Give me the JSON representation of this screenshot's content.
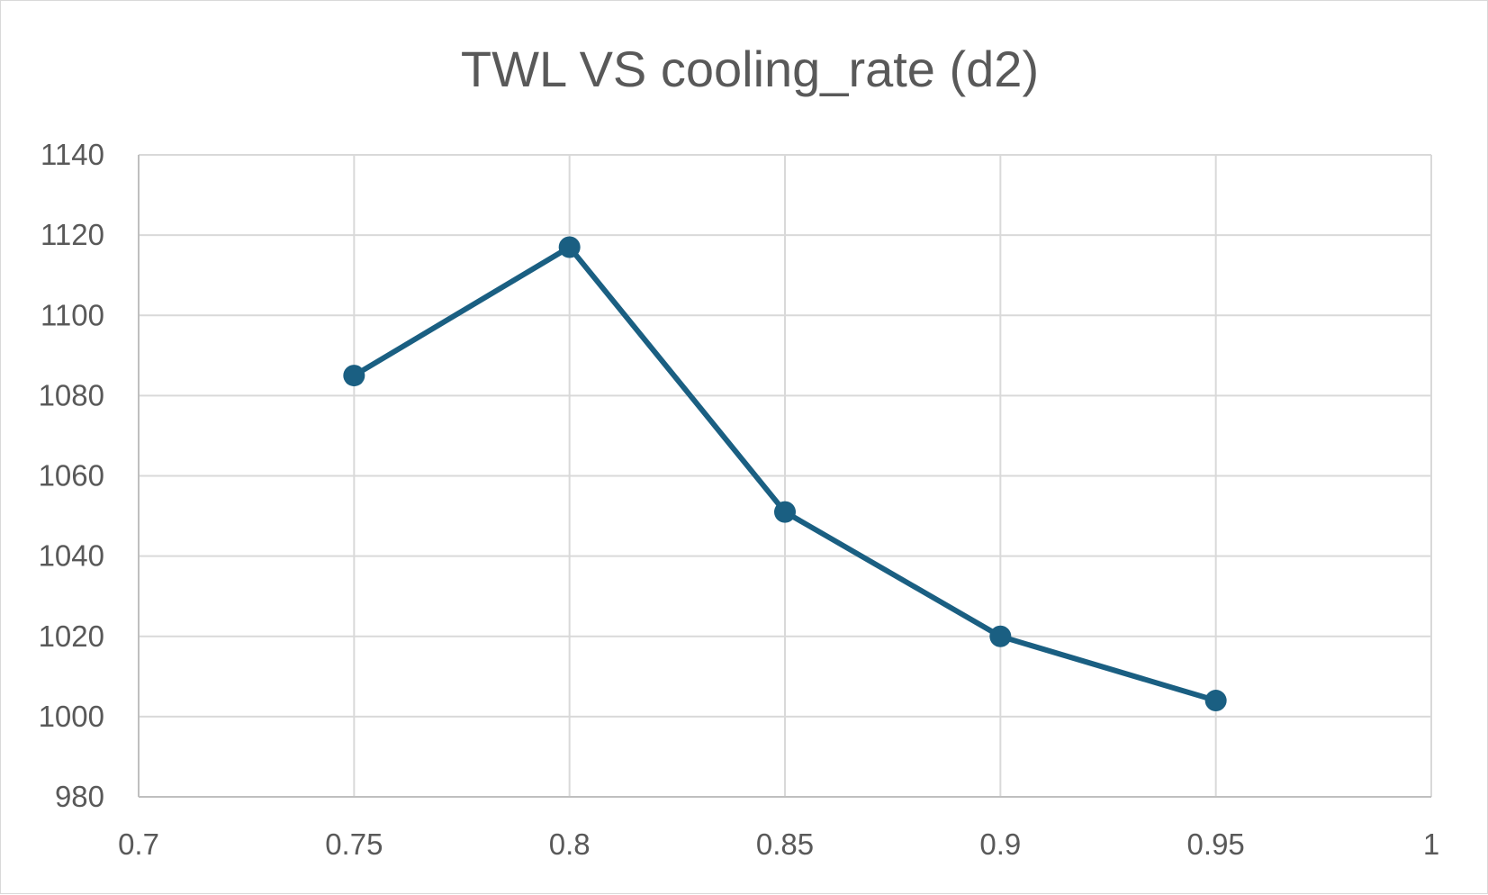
{
  "chart_data": {
    "type": "scatter",
    "title": "TWL VS cooling_rate (d2)",
    "xlabel": "",
    "ylabel": "",
    "xlim": [
      0.7,
      1
    ],
    "ylim": [
      980,
      1140
    ],
    "x_ticks": [
      0.7,
      0.75,
      0.8,
      0.85,
      0.9,
      0.95,
      1
    ],
    "x_tick_labels": [
      "0.7",
      "0.75",
      "0.8",
      "0.85",
      "0.9",
      "0.95",
      "1"
    ],
    "y_ticks": [
      980,
      1000,
      1020,
      1040,
      1060,
      1080,
      1100,
      1120,
      1140
    ],
    "y_tick_labels": [
      "980",
      "1000",
      "1020",
      "1040",
      "1060",
      "1080",
      "1100",
      "1120",
      "1140"
    ],
    "grid": true,
    "legend": "none",
    "series": [
      {
        "color": "#1a5f82",
        "markers": true,
        "lines": true,
        "points": [
          {
            "x": 0.75,
            "y": 1085
          },
          {
            "x": 0.8,
            "y": 1117
          },
          {
            "x": 0.85,
            "y": 1051
          },
          {
            "x": 0.9,
            "y": 1020
          },
          {
            "x": 0.95,
            "y": 1004
          }
        ]
      }
    ]
  }
}
